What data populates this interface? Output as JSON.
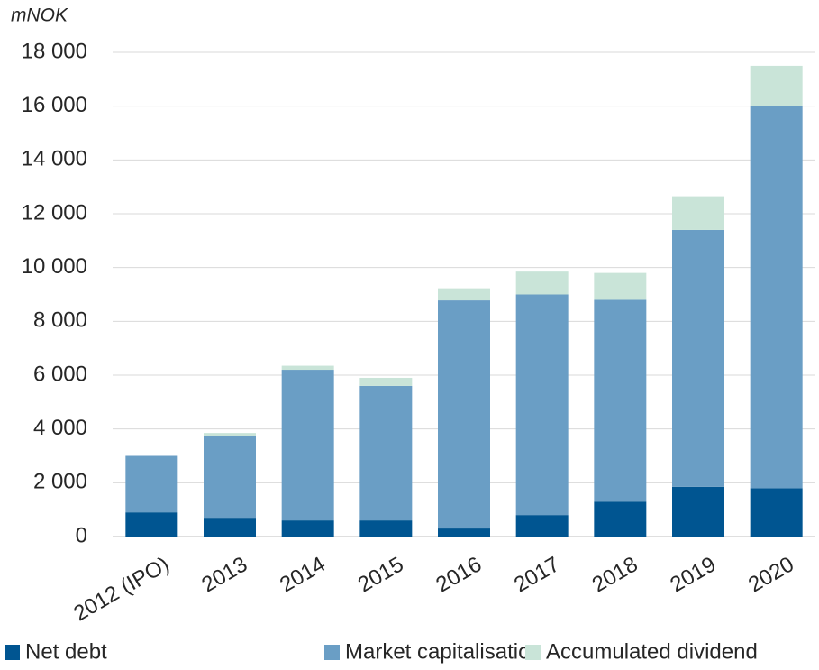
{
  "chart_data": {
    "type": "stacked_bar",
    "y_axis_label": "mNOK",
    "categories": [
      "2012 (IPO)",
      "2013",
      "2014",
      "2015",
      "2016",
      "2017",
      "2018",
      "2019",
      "2020"
    ],
    "series": [
      {
        "name": "Net debt",
        "color": "#005591",
        "values": [
          900,
          700,
          600,
          600,
          300,
          800,
          1300,
          1850,
          1800
        ]
      },
      {
        "name": "Market capitalisation",
        "color": "#6a9ec5",
        "values": [
          2100,
          3050,
          5600,
          5000,
          8480,
          8200,
          7500,
          9550,
          14200
        ]
      },
      {
        "name": "Accumulated dividend",
        "color": "#c9e4d8",
        "values": [
          0,
          100,
          150,
          300,
          450,
          850,
          1000,
          1250,
          1500
        ]
      }
    ],
    "ylim": [
      0,
      18000
    ],
    "yticks": [
      0,
      {
        "value": 2000,
        "label": "2 000"
      },
      {
        "value": 4000,
        "label": "4 000"
      },
      {
        "value": 6000,
        "label": "6 000"
      },
      {
        "value": 8000,
        "label": "8 000"
      },
      {
        "value": 10000,
        "label": "10 000"
      },
      {
        "value": 12000,
        "label": "12 000"
      },
      {
        "value": 14000,
        "label": "14 000"
      },
      {
        "value": 16000,
        "label": "16 000"
      },
      {
        "value": 18000,
        "label": "18 000"
      }
    ],
    "grid": true,
    "legend": "bottom"
  }
}
